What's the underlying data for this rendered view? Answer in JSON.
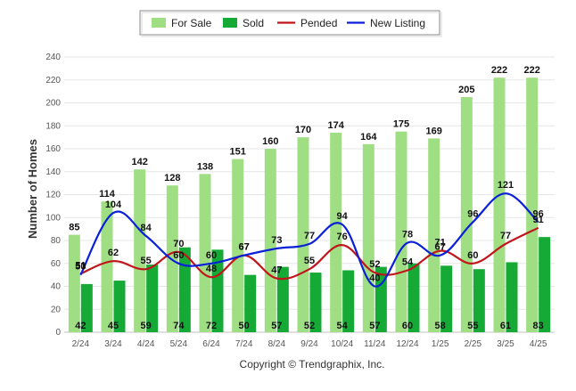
{
  "chart_data": {
    "type": "bar",
    "categories": [
      "2/24",
      "3/24",
      "4/24",
      "5/24",
      "6/24",
      "7/24",
      "8/24",
      "9/24",
      "10/24",
      "11/24",
      "12/24",
      "1/25",
      "2/25",
      "3/25",
      "4/25"
    ],
    "series": [
      {
        "name": "For Sale",
        "kind": "bar",
        "color": "#a0de84",
        "values": [
          85,
          114,
          142,
          128,
          138,
          151,
          160,
          170,
          174,
          164,
          175,
          169,
          205,
          222,
          222
        ]
      },
      {
        "name": "Sold",
        "kind": "bar",
        "color": "#14aa35",
        "values": [
          42,
          45,
          59,
          74,
          72,
          50,
          57,
          52,
          54,
          57,
          60,
          58,
          55,
          61,
          83
        ]
      },
      {
        "name": "Pended",
        "kind": "line",
        "color": "#c0161b",
        "values": [
          51,
          62,
          55,
          70,
          48,
          67,
          47,
          55,
          76,
          52,
          54,
          71,
          60,
          77,
          91
        ]
      },
      {
        "name": "New Listing",
        "kind": "line",
        "color": "#0a20d8",
        "values": [
          50,
          104,
          84,
          60,
          60,
          67,
          73,
          77,
          94,
          40,
          78,
          67,
          96,
          121,
          96
        ]
      }
    ],
    "ylabel": "Number of Homes",
    "xlabel": "",
    "ylim": [
      0,
      240
    ],
    "yticks": [
      0,
      20,
      40,
      60,
      80,
      100,
      120,
      140,
      160,
      180,
      200,
      220,
      240
    ],
    "grid": true,
    "legend": "top-center"
  },
  "footer": {
    "copyright": "Copyright © Trendgraphix, Inc."
  }
}
